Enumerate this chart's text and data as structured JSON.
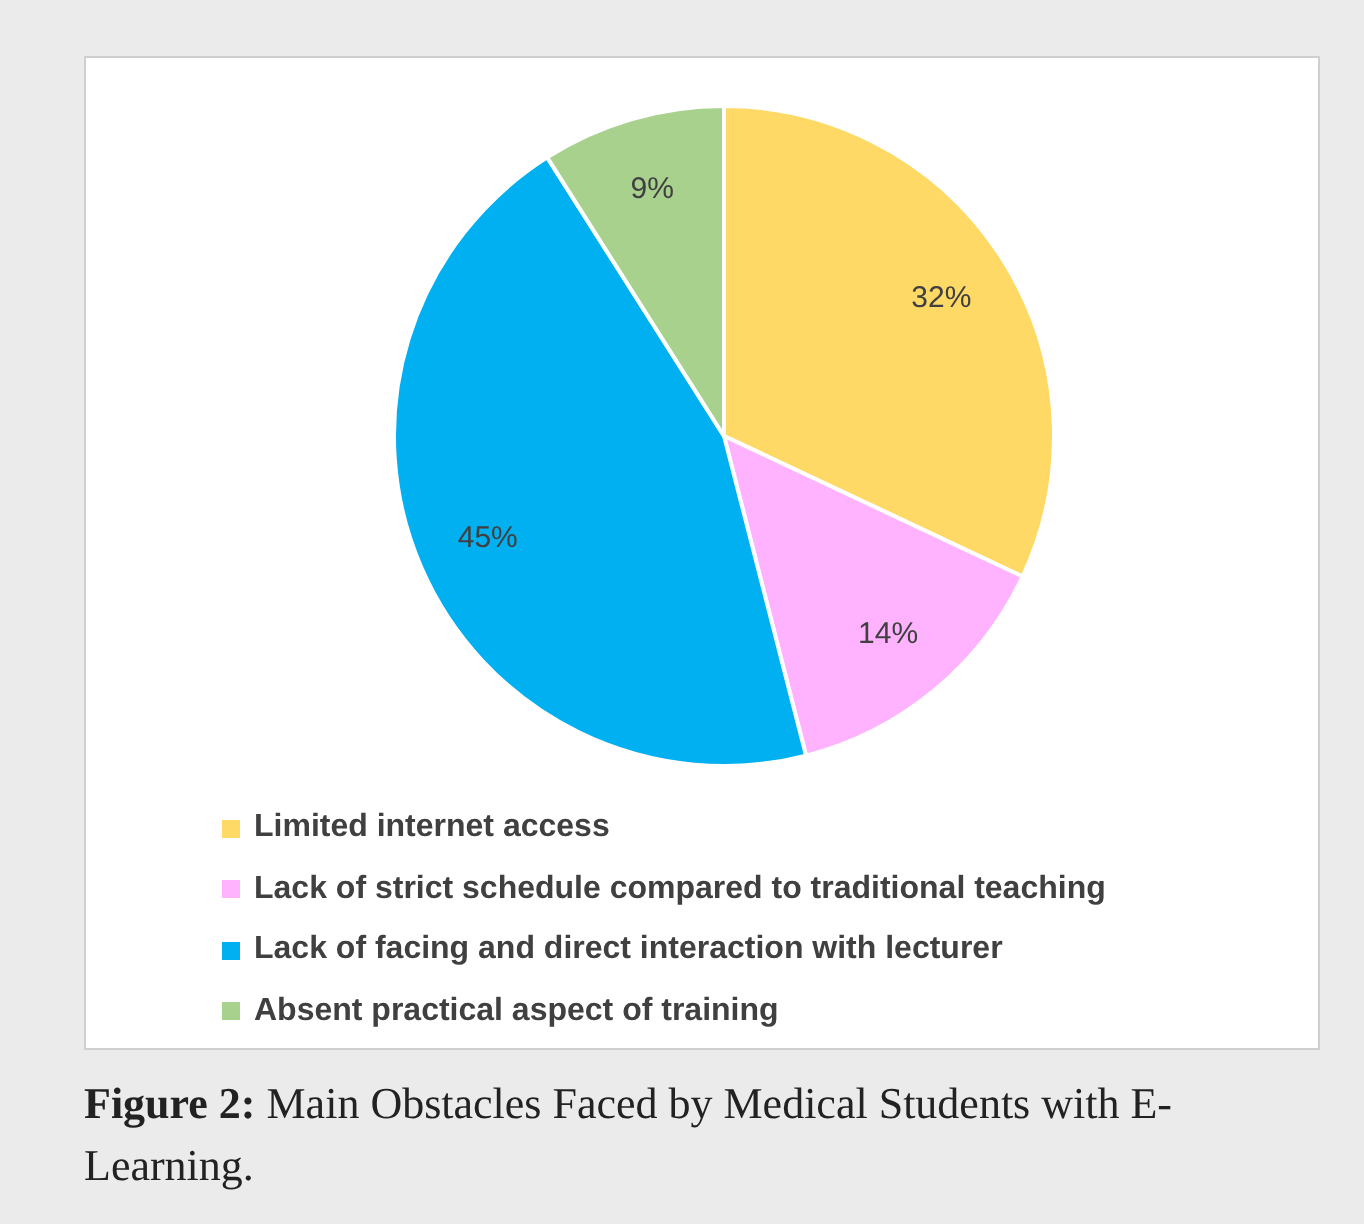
{
  "chart_data": {
    "type": "pie",
    "categories": [
      "Limited internet access",
      "Lack of strict schedule compared to traditional teaching",
      "Lack of facing and direct interaction with lecturer",
      "Absent practical aspect of training"
    ],
    "values": [
      32,
      14,
      45,
      9
    ],
    "colors": [
      "#ffd966",
      "#ffb3ff",
      "#00b0f0",
      "#a9d18e"
    ],
    "value_labels": [
      "32%",
      "14%",
      "45%",
      "9%"
    ],
    "legend": "bottom",
    "annotations": [
      "Figure 2: Main Obstacles Faced by Medical Students with E-Learning."
    ]
  }
}
